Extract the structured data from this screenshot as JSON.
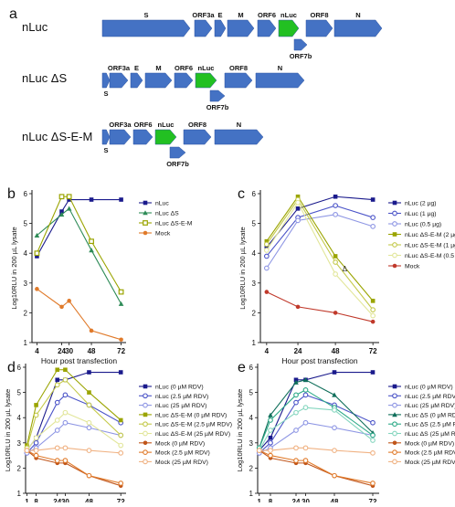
{
  "panel_letters": {
    "a": "a",
    "b": "b",
    "c": "c",
    "d": "d",
    "e": "e"
  },
  "genome": {
    "gene_color": "#4472c4",
    "nluc_color": "#22c022",
    "constructs": [
      {
        "name": "nLuc",
        "genes": [
          {
            "label": "S",
            "label_pos": "in"
          },
          {
            "label": "ORF3a",
            "label_pos": "above"
          },
          {
            "label": "E",
            "label_pos": "above"
          },
          {
            "label": "M",
            "label_pos": "in"
          },
          {
            "label": "ORF6",
            "label_pos": "in"
          },
          {
            "label": "nLuc",
            "label_pos": "above",
            "nluc": true
          },
          {
            "label": "ORF8",
            "label_pos": "above"
          },
          {
            "label": "N",
            "label_pos": "in"
          },
          {
            "label": "ORF7b",
            "label_pos": "below"
          }
        ]
      },
      {
        "name": "nLuc ΔS",
        "genes": [
          {
            "label": "S",
            "label_pos": "below"
          },
          {
            "label": "ORF3a",
            "label_pos": "above"
          },
          {
            "label": "E",
            "label_pos": "above"
          },
          {
            "label": "M",
            "label_pos": "above"
          },
          {
            "label": "ORF6",
            "label_pos": "above"
          },
          {
            "label": "nLuc",
            "label_pos": "above",
            "nluc": true
          },
          {
            "label": "ORF8",
            "label_pos": "above"
          },
          {
            "label": "N",
            "label_pos": "above"
          },
          {
            "label": "ORF7b",
            "label_pos": "below"
          }
        ]
      },
      {
        "name": "nLuc ΔS-E-M",
        "genes": [
          {
            "label": "S",
            "label_pos": "below"
          },
          {
            "label": "ORF3a",
            "label_pos": "above"
          },
          {
            "label": "ORF6",
            "label_pos": "above"
          },
          {
            "label": "nLuc",
            "label_pos": "above",
            "nluc": true
          },
          {
            "label": "ORF8",
            "label_pos": "above"
          },
          {
            "label": "N",
            "label_pos": "above"
          },
          {
            "label": "ORF7b",
            "label_pos": "below"
          }
        ]
      }
    ]
  },
  "chart_data": [
    {
      "id": "b",
      "type": "line",
      "title": "",
      "xlabel": "Hour post transfection",
      "ylabel": "Log10RLU in 200 µL lysate",
      "x_ticks": [
        4,
        24,
        30,
        48,
        72
      ],
      "ylim": [
        1,
        6
      ],
      "series": [
        {
          "name": "nLuc",
          "color": "#1a1a8c",
          "marker": "square",
          "x": [
            4,
            24,
            30,
            48,
            72
          ],
          "y": [
            3.9,
            5.4,
            5.8,
            5.8,
            5.8
          ]
        },
        {
          "name": "nLuc ΔS",
          "color": "#2e8b57",
          "marker": "triangle",
          "x": [
            4,
            24,
            30,
            48,
            72
          ],
          "y": [
            4.6,
            5.3,
            5.5,
            4.1,
            2.3
          ]
        },
        {
          "name": "nLuc ΔS-E-M",
          "color": "#9aa400",
          "marker": "square-open",
          "x": [
            4,
            24,
            30,
            48,
            72
          ],
          "y": [
            4.0,
            5.9,
            5.9,
            4.4,
            2.7
          ]
        },
        {
          "name": "Mock",
          "color": "#e07a2a",
          "marker": "circle",
          "x": [
            4,
            24,
            30,
            48,
            72
          ],
          "y": [
            2.8,
            2.2,
            2.4,
            1.4,
            1.1
          ]
        }
      ]
    },
    {
      "id": "c",
      "type": "line",
      "title": "",
      "xlabel": "Hour post transfection",
      "ylabel": "Log10RLU in 200 µL lysate",
      "x_ticks": [
        4,
        24,
        48,
        72
      ],
      "ylim": [
        1,
        6
      ],
      "annotation": "Δ",
      "series": [
        {
          "name": "nLuc (2 µg)",
          "color": "#1a1a8c",
          "marker": "square",
          "x": [
            4,
            24,
            48,
            72
          ],
          "y": [
            4.2,
            5.5,
            5.9,
            5.8
          ]
        },
        {
          "name": "nLuc (1 µg)",
          "color": "#4b54c8",
          "marker": "circle-open",
          "x": [
            4,
            24,
            48,
            72
          ],
          "y": [
            3.9,
            5.2,
            5.6,
            5.2
          ]
        },
        {
          "name": "nLuc (0.5 µg)",
          "color": "#8e96e4",
          "marker": "circle-open",
          "x": [
            4,
            24,
            48,
            72
          ],
          "y": [
            3.5,
            5.1,
            5.3,
            4.9
          ]
        },
        {
          "name": "nLuc ΔS-E-M (2 µg)",
          "color": "#9aa400",
          "marker": "square",
          "x": [
            4,
            24,
            48,
            72
          ],
          "y": [
            4.4,
            5.9,
            3.9,
            2.4
          ]
        },
        {
          "name": "nLuc ΔS-E-M (1 µg)",
          "color": "#c4c94a",
          "marker": "circle-open",
          "x": [
            4,
            24,
            48,
            72
          ],
          "y": [
            4.3,
            5.8,
            3.7,
            2.1
          ]
        },
        {
          "name": "nLuc ΔS-E-M (0.5 µg)",
          "color": "#e2e69a",
          "marker": "circle-open",
          "x": [
            4,
            24,
            48,
            72
          ],
          "y": [
            4.1,
            5.7,
            3.3,
            1.9
          ]
        },
        {
          "name": "Mock",
          "color": "#c0392b",
          "marker": "circle",
          "x": [
            4,
            24,
            48,
            72
          ],
          "y": [
            2.7,
            2.2,
            2.0,
            1.7
          ]
        }
      ]
    },
    {
      "id": "d",
      "type": "line",
      "title": "",
      "xlabel": "Hour post transfection",
      "ylabel": "Log10RLU in 200 µL lysate",
      "x_ticks": [
        1,
        8,
        24,
        30,
        48,
        72
      ],
      "ylim": [
        1,
        6
      ],
      "series": [
        {
          "name": "nLuc (0 µM RDV)",
          "color": "#1a1a8c",
          "marker": "square",
          "x": [
            1,
            8,
            24,
            30,
            48,
            72
          ],
          "y": [
            2.7,
            3.2,
            5.5,
            5.5,
            5.8,
            5.8
          ]
        },
        {
          "name": "nLuc (2.5 µM RDV)",
          "color": "#4b54c8",
          "marker": "circle-open",
          "x": [
            1,
            8,
            24,
            30,
            48,
            72
          ],
          "y": [
            2.6,
            3.0,
            4.6,
            4.9,
            4.5,
            3.8
          ]
        },
        {
          "name": "nLuc (25 µM RDV)",
          "color": "#8e96e4",
          "marker": "circle-open",
          "x": [
            1,
            8,
            24,
            30,
            48,
            72
          ],
          "y": [
            2.6,
            2.8,
            3.5,
            3.8,
            3.6,
            3.3
          ]
        },
        {
          "name": "nLuc ΔS-E-M (0 µM RDV)",
          "color": "#9aa400",
          "marker": "square",
          "x": [
            1,
            8,
            24,
            30,
            48,
            72
          ],
          "y": [
            2.9,
            4.5,
            5.9,
            5.9,
            5.0,
            3.9
          ]
        },
        {
          "name": "nLuc ΔS-E-M (2.5 µM RDV)",
          "color": "#c4c94a",
          "marker": "circle-open",
          "x": [
            1,
            8,
            24,
            30,
            48,
            72
          ],
          "y": [
            2.8,
            4.1,
            5.3,
            5.5,
            4.5,
            3.3
          ]
        },
        {
          "name": "nLuc ΔS-E-M (25 µM RDV)",
          "color": "#e2e69a",
          "marker": "circle-open",
          "x": [
            1,
            8,
            24,
            30,
            48,
            72
          ],
          "y": [
            2.7,
            3.2,
            3.9,
            4.2,
            3.8,
            2.9
          ]
        },
        {
          "name": "Mock (0 µM RDV)",
          "color": "#c0551a",
          "marker": "circle",
          "x": [
            1,
            8,
            24,
            30,
            48,
            72
          ],
          "y": [
            2.7,
            2.4,
            2.2,
            2.2,
            1.7,
            1.3
          ]
        },
        {
          "name": "Mock (2.5 µM RDV)",
          "color": "#e07a2a",
          "marker": "circle-open",
          "x": [
            1,
            8,
            24,
            30,
            48,
            72
          ],
          "y": [
            2.7,
            2.5,
            2.3,
            2.3,
            1.7,
            1.4
          ]
        },
        {
          "name": "Mock (25 µM RDV)",
          "color": "#f0b283",
          "marker": "circle-open",
          "x": [
            1,
            8,
            24,
            30,
            48,
            72
          ],
          "y": [
            2.7,
            2.7,
            2.8,
            2.8,
            2.7,
            2.6
          ]
        }
      ]
    },
    {
      "id": "e",
      "type": "line",
      "title": "",
      "xlabel": "Hour post transfection",
      "ylabel": "Log10RLU in 200 µL lysate",
      "x_ticks": [
        1,
        8,
        24,
        30,
        48,
        72
      ],
      "ylim": [
        1,
        6
      ],
      "series": [
        {
          "name": "nLuc (0 µM RDV)",
          "color": "#1a1a8c",
          "marker": "square",
          "x": [
            1,
            8,
            24,
            30,
            48,
            72
          ],
          "y": [
            2.7,
            3.2,
            5.5,
            5.5,
            5.8,
            5.8
          ]
        },
        {
          "name": "nLuc (2.5 µM RDV)",
          "color": "#4b54c8",
          "marker": "circle-open",
          "x": [
            1,
            8,
            24,
            30,
            48,
            72
          ],
          "y": [
            2.6,
            3.0,
            4.6,
            4.9,
            4.5,
            3.8
          ]
        },
        {
          "name": "nLuc (25 µM RDV)",
          "color": "#8e96e4",
          "marker": "circle-open",
          "x": [
            1,
            8,
            24,
            30,
            48,
            72
          ],
          "y": [
            2.6,
            2.8,
            3.5,
            3.8,
            3.6,
            3.3
          ]
        },
        {
          "name": "nLuc ΔS (0 µM RDV)",
          "color": "#0f6e5a",
          "marker": "triangle",
          "x": [
            1,
            8,
            24,
            30,
            48,
            72
          ],
          "y": [
            2.8,
            4.1,
            5.4,
            5.5,
            4.9,
            3.4
          ]
        },
        {
          "name": "nLuc ΔS (2.5 µM RDV)",
          "color": "#2eaa88",
          "marker": "circle-open",
          "x": [
            1,
            8,
            24,
            30,
            48,
            72
          ],
          "y": [
            2.8,
            3.9,
            4.9,
            5.1,
            4.4,
            3.3
          ]
        },
        {
          "name": "nLuc ΔS (25 µM RDV)",
          "color": "#85d6bf",
          "marker": "circle-open",
          "x": [
            1,
            8,
            24,
            30,
            48,
            72
          ],
          "y": [
            2.7,
            3.5,
            4.2,
            4.4,
            4.3,
            3.1
          ]
        },
        {
          "name": "Mock (0 µM RDV)",
          "color": "#c0551a",
          "marker": "circle",
          "x": [
            1,
            8,
            24,
            30,
            48,
            72
          ],
          "y": [
            2.7,
            2.4,
            2.2,
            2.2,
            1.7,
            1.3
          ]
        },
        {
          "name": "Mock (2.5 µM RDV)",
          "color": "#e07a2a",
          "marker": "circle-open",
          "x": [
            1,
            8,
            24,
            30,
            48,
            72
          ],
          "y": [
            2.7,
            2.5,
            2.3,
            2.3,
            1.7,
            1.4
          ]
        },
        {
          "name": "Mock (25 µM RDV)",
          "color": "#f0b283",
          "marker": "circle-open",
          "x": [
            1,
            8,
            24,
            30,
            48,
            72
          ],
          "y": [
            2.7,
            2.7,
            2.8,
            2.8,
            2.7,
            2.6
          ]
        }
      ]
    }
  ]
}
